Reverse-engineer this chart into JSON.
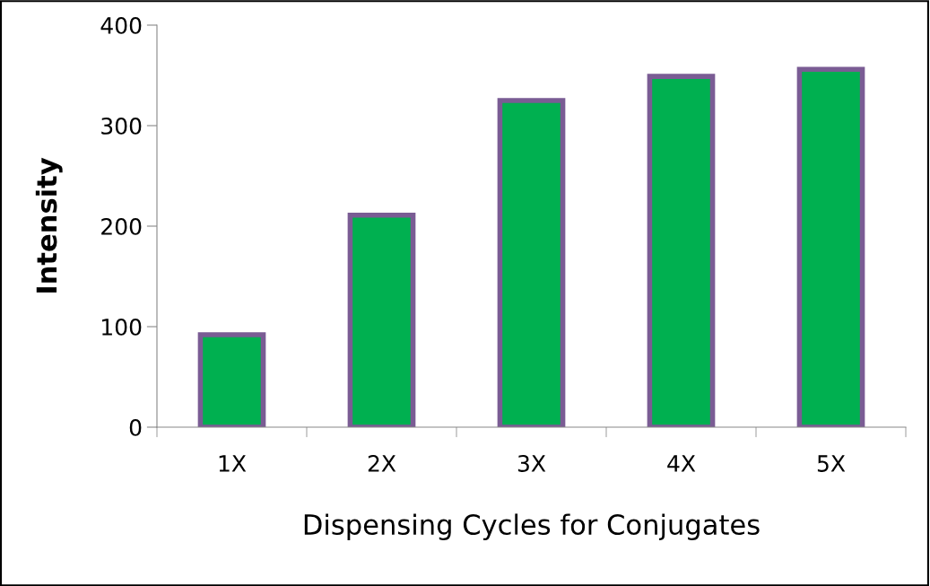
{
  "chart_data": {
    "type": "bar",
    "xlabel": "Dispensing Cycles for Conjugates",
    "ylabel": "Intensity",
    "categories": [
      "1X",
      "2X",
      "3X",
      "4X",
      "5X"
    ],
    "values": [
      92,
      211,
      325,
      349,
      356
    ],
    "color": "#00b050",
    "ylim": [
      0,
      400
    ],
    "yticks": [
      0,
      100,
      200,
      300,
      400
    ],
    "grid": false
  }
}
